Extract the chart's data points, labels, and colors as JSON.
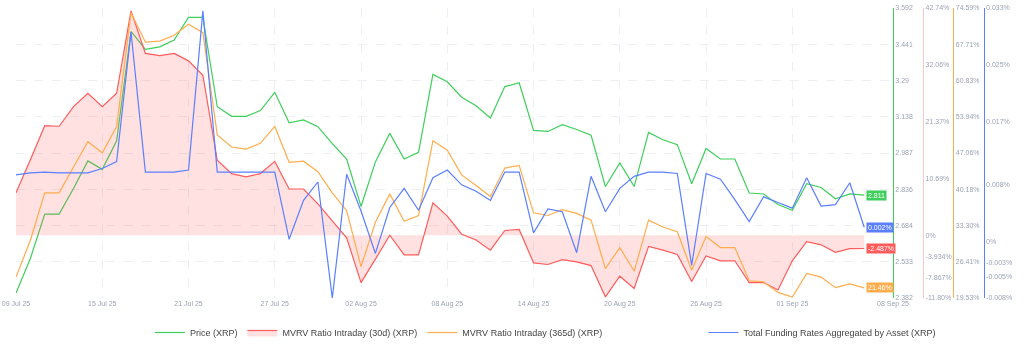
{
  "chart_data": [
    {
      "type": "line",
      "grid": true,
      "legend": "bottom",
      "marker": "none",
      "line_style": "solid",
      "x": [
        "--07-09",
        "--07-10",
        "--07-11",
        "--07-12",
        "--07-13",
        "--07-14",
        "--07-15",
        "--07-16",
        "--07-17",
        "--07-18",
        "--07-19",
        "--07-20",
        "--07-21",
        "--07-22",
        "--07-23",
        "--07-24",
        "--07-25",
        "--07-26",
        "--07-27",
        "--07-28",
        "--07-29",
        "--07-30",
        "--07-31",
        "--08-01",
        "--08-02",
        "--08-03",
        "--08-04",
        "--08-05",
        "--08-06",
        "--08-07",
        "--08-08",
        "--08-09",
        "--08-10",
        "--08-11",
        "--08-12",
        "--08-13",
        "--08-14",
        "--08-15",
        "--08-16",
        "--08-17",
        "--08-18",
        "--08-19",
        "--08-20",
        "--08-21",
        "--08-22",
        "--08-23",
        "--08-24",
        "--08-25",
        "--08-26",
        "--08-27",
        "--08-28",
        "--08-29",
        "--08-30",
        "--08-31",
        "--09-01",
        "--09-02",
        "--09-03",
        "--09-04",
        "--09-05",
        "--09-06"
      ],
      "xlim": [
        "--07-09",
        "--09-08"
      ],
      "xticks": [
        {
          "value": "--07-09",
          "label": "09 Jul 25"
        },
        {
          "value": "--07-15",
          "label": "15 Jul 25"
        },
        {
          "value": "--07-21",
          "label": "21 Jul 25"
        },
        {
          "value": "--07-27",
          "label": "27 Jul 25"
        },
        {
          "value": "--08-02",
          "label": "02 Aug 25"
        },
        {
          "value": "--08-08",
          "label": "08 Aug 25"
        },
        {
          "value": "--08-14",
          "label": "14 Aug 25"
        },
        {
          "value": "--08-20",
          "label": "20 Aug 25"
        },
        {
          "value": "--08-26",
          "label": "26 Aug 25"
        },
        {
          "value": "--09-01",
          "label": "01 Sep 25"
        },
        {
          "value": "--09-08",
          "label": "08 Sep 25"
        }
      ],
      "ylim": [
        2.382,
        3.592
      ],
      "yticks": [
        2.382,
        2.533,
        2.684,
        2.836,
        2.987,
        3.138,
        3.29,
        3.441,
        3.592
      ],
      "y2lim": [
        -11.8,
        42.74
      ],
      "y2ticks": [
        {
          "value": -11.8,
          "label": "-11.80%"
        },
        {
          "value": -7.867,
          "label": "-7.867%"
        },
        {
          "value": -3.934,
          "label": "-3.934%"
        },
        {
          "value": 0,
          "label": "0%"
        },
        {
          "value": 10.69,
          "label": "10.69%"
        },
        {
          "value": 21.37,
          "label": "21.37%"
        },
        {
          "value": 32.06,
          "label": "32.06%"
        },
        {
          "value": 42.74,
          "label": "42.74%"
        }
      ],
      "y3lim": [
        19.53,
        74.59
      ],
      "y3ticks": [
        {
          "value": 19.53,
          "label": "19.53%"
        },
        {
          "value": 26.41,
          "label": "26.41%"
        },
        {
          "value": 33.3,
          "label": "33.30%"
        },
        {
          "value": 40.18,
          "label": "40.18%"
        },
        {
          "value": 47.06,
          "label": "47.06%"
        },
        {
          "value": 53.94,
          "label": "53.94%"
        },
        {
          "value": 60.83,
          "label": "60.83%"
        },
        {
          "value": 67.71,
          "label": "67.71%"
        },
        {
          "value": 74.59,
          "label": "74.59%"
        }
      ],
      "series": [
        {
          "name": "Price (XRP)",
          "color": "#3ecf5b",
          "values": [
            2.403,
            2.547,
            2.732,
            2.732,
            2.839,
            2.954,
            2.919,
            3.038,
            3.494,
            3.419,
            3.43,
            3.458,
            3.553,
            3.553,
            3.18,
            3.14,
            3.14,
            3.164,
            3.24,
            3.113,
            3.125,
            3.097,
            3.026,
            2.962,
            2.764,
            2.95,
            3.069,
            2.962,
            2.99,
            3.315,
            3.284,
            3.22,
            3.184,
            3.133,
            3.264,
            3.28,
            3.081,
            3.077,
            3.105,
            3.085,
            3.061,
            2.847,
            2.946,
            2.847,
            3.073,
            3.042,
            3.022,
            2.859,
            3.006,
            2.962,
            2.962,
            2.82,
            2.816,
            2.772,
            2.748,
            2.859,
            2.843,
            2.796,
            2.816,
            2.811
          ],
          "value_labels": [
            null,
            null,
            null,
            null,
            null,
            null,
            null,
            null,
            null,
            null,
            null,
            null,
            null,
            null,
            null,
            null,
            null,
            null,
            null,
            null,
            null,
            null,
            null,
            null,
            null,
            null,
            null,
            null,
            null,
            null,
            null,
            null,
            null,
            null,
            null,
            null,
            null,
            null,
            null,
            null,
            null,
            null,
            null,
            null,
            null,
            null,
            null,
            null,
            null,
            null,
            null,
            null,
            null,
            null,
            null,
            null,
            null,
            null,
            null,
            "2.811"
          ]
        },
        {
          "name": "MVRV Ratio Intraday (30d) (XRP)",
          "color": "#ff5b5b",
          "type": "area",
          "axis": "y2",
          "values": [
            8.0,
            14.2,
            20.6,
            20.5,
            24.2,
            26.7,
            24.2,
            26.7,
            42.2,
            34.2,
            33.8,
            34.2,
            32.8,
            30.1,
            14.1,
            11.6,
            11.0,
            11.6,
            13.9,
            8.7,
            8.7,
            5.9,
            2.7,
            -0.5,
            -8.9,
            -4.5,
            0,
            -3.7,
            -3.7,
            6.1,
            3.6,
            0.2,
            -0.9,
            -2.8,
            0.9,
            1.1,
            -5.2,
            -5.5,
            -4.6,
            -5.0,
            -5.7,
            -11.6,
            -7.7,
            -10.0,
            -2.1,
            -2.8,
            -3.6,
            -8.7,
            -3.9,
            -4.8,
            -4.8,
            -8.9,
            -8.9,
            -10.3,
            -4.8,
            -1.2,
            -1.8,
            -3.2,
            -2.5,
            -2.487
          ],
          "value_labels": [
            null,
            null,
            null,
            null,
            null,
            null,
            null,
            null,
            null,
            null,
            null,
            null,
            null,
            null,
            null,
            null,
            null,
            null,
            null,
            null,
            null,
            null,
            null,
            null,
            null,
            null,
            null,
            null,
            null,
            null,
            null,
            null,
            null,
            null,
            null,
            null,
            null,
            null,
            null,
            null,
            null,
            null,
            null,
            null,
            null,
            null,
            null,
            null,
            null,
            null,
            null,
            null,
            null,
            null,
            null,
            null,
            null,
            null,
            null,
            "-2.487%"
          ]
        },
        {
          "name": "MVRV Ratio Intraday (365d) (XRP)",
          "color": "#ffad4d",
          "axis": "y3",
          "values": [
            23.5,
            30.5,
            39.5,
            39.5,
            44.4,
            49.2,
            47.1,
            52.1,
            73.7,
            68.1,
            68.3,
            69.4,
            71.5,
            69.9,
            50.5,
            48.2,
            47.8,
            48.9,
            52.1,
            45.3,
            45.5,
            43.5,
            39.5,
            36.1,
            25.5,
            33.9,
            39.3,
            34.1,
            35.2,
            49.4,
            47.6,
            42.9,
            40.9,
            38.8,
            44.2,
            44.7,
            35.7,
            35.2,
            36.3,
            35.6,
            34.3,
            25.1,
            29.1,
            24.6,
            34.3,
            33.0,
            32.1,
            24.8,
            31.2,
            29.1,
            29.1,
            22.8,
            22.6,
            20.6,
            19.7,
            24.2,
            23.5,
            21.5,
            22.2,
            21.46
          ],
          "value_labels": [
            null,
            null,
            null,
            null,
            null,
            null,
            null,
            null,
            null,
            null,
            null,
            null,
            null,
            null,
            null,
            null,
            null,
            null,
            null,
            null,
            null,
            null,
            null,
            null,
            null,
            null,
            null,
            null,
            null,
            null,
            null,
            null,
            null,
            null,
            null,
            null,
            null,
            null,
            null,
            null,
            null,
            null,
            null,
            null,
            null,
            null,
            null,
            null,
            null,
            null,
            null,
            null,
            null,
            null,
            null,
            null,
            null,
            null,
            null,
            "21.46%"
          ]
        }
      ]
    },
    {
      "type": "line",
      "grid": false,
      "legend": "bottom",
      "marker": "none",
      "line_style": "solid",
      "tick_labels": "y",
      "x": [
        "--07-09",
        "--07-10",
        "--07-11",
        "--07-12",
        "--07-13",
        "--07-14",
        "--07-15",
        "--07-16",
        "--07-17",
        "--07-18",
        "--07-19",
        "--07-20",
        "--07-21",
        "--07-22",
        "--07-23",
        "--07-24",
        "--07-25",
        "--07-26",
        "--07-27",
        "--07-28",
        "--07-29",
        "--07-30",
        "--07-31",
        "--08-01",
        "--08-02",
        "--08-03",
        "--08-04",
        "--08-05",
        "--08-06",
        "--08-07",
        "--08-08",
        "--08-09",
        "--08-10",
        "--08-11",
        "--08-12",
        "--08-13",
        "--08-14",
        "--08-15",
        "--08-16",
        "--08-17",
        "--08-18",
        "--08-19",
        "--08-20",
        "--08-21",
        "--08-22",
        "--08-23",
        "--08-24",
        "--08-25",
        "--08-26",
        "--08-27",
        "--08-28",
        "--08-29",
        "--08-30",
        "--08-31",
        "--09-01",
        "--09-02",
        "--09-03",
        "--09-04",
        "--09-05",
        "--09-06"
      ],
      "xlim": [
        "--07-09",
        "--09-08"
      ],
      "ylim": [
        -0.008,
        0.033
      ],
      "yticks": [
        {
          "value": -0.008,
          "label": "-0.008%"
        },
        {
          "value": -0.005,
          "label": "-0.005%"
        },
        {
          "value": -0.003,
          "label": "-0.003%"
        },
        {
          "value": 0,
          "label": "0%"
        },
        {
          "value": 0.008,
          "label": "0.008%"
        },
        {
          "value": 0.017,
          "label": "0.017%"
        },
        {
          "value": 0.025,
          "label": "0.025%"
        },
        {
          "value": 0.033,
          "label": "0.033%"
        }
      ],
      "series": [
        {
          "name": "Total Funding Rates Aggregated by Asset (XRP)",
          "color": "#5b7fff",
          "values": [
            0.0094,
            0.0097,
            0.0098,
            0.0097,
            0.0097,
            0.0097,
            0.0103,
            0.0113,
            0.0296,
            0.0098,
            0.0098,
            0.0098,
            0.0101,
            0.0326,
            0.0098,
            0.0098,
            0.0098,
            0.0098,
            0.0098,
            0.0003,
            0.0058,
            0.0084,
            -0.008,
            0.0095,
            0.0043,
            -0.0017,
            0.0048,
            0.0075,
            0.0044,
            0.009,
            0.0101,
            0.008,
            0.0071,
            0.0058,
            0.0098,
            0.0098,
            0.0012,
            0.0046,
            0.0042,
            -0.0016,
            0.0092,
            0.0042,
            0.0075,
            0.0092,
            0.0098,
            0.0098,
            0.0096,
            -0.0034,
            0.0096,
            0.0088,
            0.0059,
            0.0028,
            0.0063,
            0.0055,
            0.0047,
            0.009,
            0.005,
            0.0052,
            0.0083,
            0.002
          ],
          "value_labels": [
            null,
            null,
            null,
            null,
            null,
            null,
            null,
            null,
            null,
            null,
            null,
            null,
            null,
            null,
            null,
            null,
            null,
            null,
            null,
            null,
            null,
            null,
            null,
            null,
            null,
            null,
            null,
            null,
            null,
            null,
            null,
            null,
            null,
            null,
            null,
            null,
            null,
            null,
            null,
            null,
            null,
            null,
            null,
            null,
            null,
            null,
            null,
            null,
            null,
            null,
            null,
            null,
            null,
            null,
            null,
            null,
            null,
            null,
            null,
            "0.002%"
          ]
        }
      ]
    }
  ]
}
